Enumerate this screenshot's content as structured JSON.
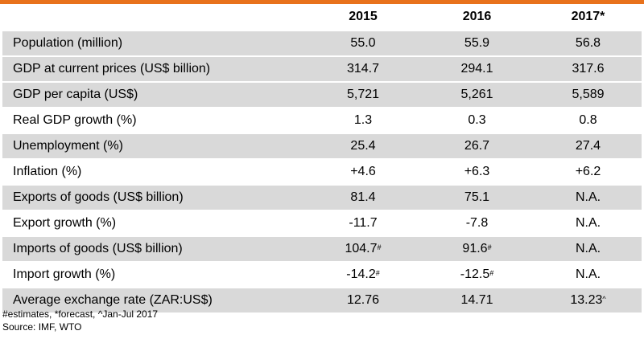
{
  "header": {
    "label": "",
    "years": [
      "2015",
      "2016",
      "2017*"
    ]
  },
  "rows": [
    {
      "label": "Population (million)",
      "v2015": "55.0",
      "v2016": "55.9",
      "v2017": "56.8"
    },
    {
      "label": "GDP at current prices (US$ billion)",
      "v2015": "314.7",
      "v2016": "294.1",
      "v2017": "317.6"
    },
    {
      "label": "GDP per capita (US$)",
      "v2015": "5,721",
      "v2016": "5,261",
      "v2017": "5,589"
    },
    {
      "label": "Real GDP growth (%)",
      "v2015": "1.3",
      "v2016": "0.3",
      "v2017": "0.8"
    },
    {
      "label": "Unemployment (%)",
      "v2015": "25.4",
      "v2016": "26.7",
      "v2017": "27.4"
    },
    {
      "label": "Inflation (%)",
      "v2015": "+4.6",
      "v2016": "+6.3",
      "v2017": "+6.2"
    },
    {
      "label": "Exports of goods (US$ billion)",
      "v2015": "81.4",
      "v2016": "75.1",
      "v2017": "N.A."
    },
    {
      "label": "Export growth (%)",
      "v2015": "-11.7",
      "v2016": "-7.8",
      "v2017": "N.A."
    },
    {
      "label": "Imports of goods (US$ billion)",
      "v2015": "104.7",
      "v2015_mark": "#",
      "v2016": "91.6",
      "v2016_mark": "#",
      "v2017": "N.A."
    },
    {
      "label": "Import growth (%)",
      "v2015": "-14.2",
      "v2015_mark": "#",
      "v2016": "-12.5",
      "v2016_mark": "#",
      "v2017": "N.A."
    },
    {
      "label": "Average exchange rate (ZAR:US$)",
      "v2015": "12.76",
      "v2016": "14.71",
      "v2017": "13.23",
      "v2017_mark": "^"
    }
  ],
  "footnotes": {
    "estimates": "#estimates, *forecast, ^Jan-Jul 2017",
    "source": "Source: IMF, WTO"
  },
  "colors": {
    "accent": "#e8721c",
    "row_shade": "#d9d9d9"
  }
}
